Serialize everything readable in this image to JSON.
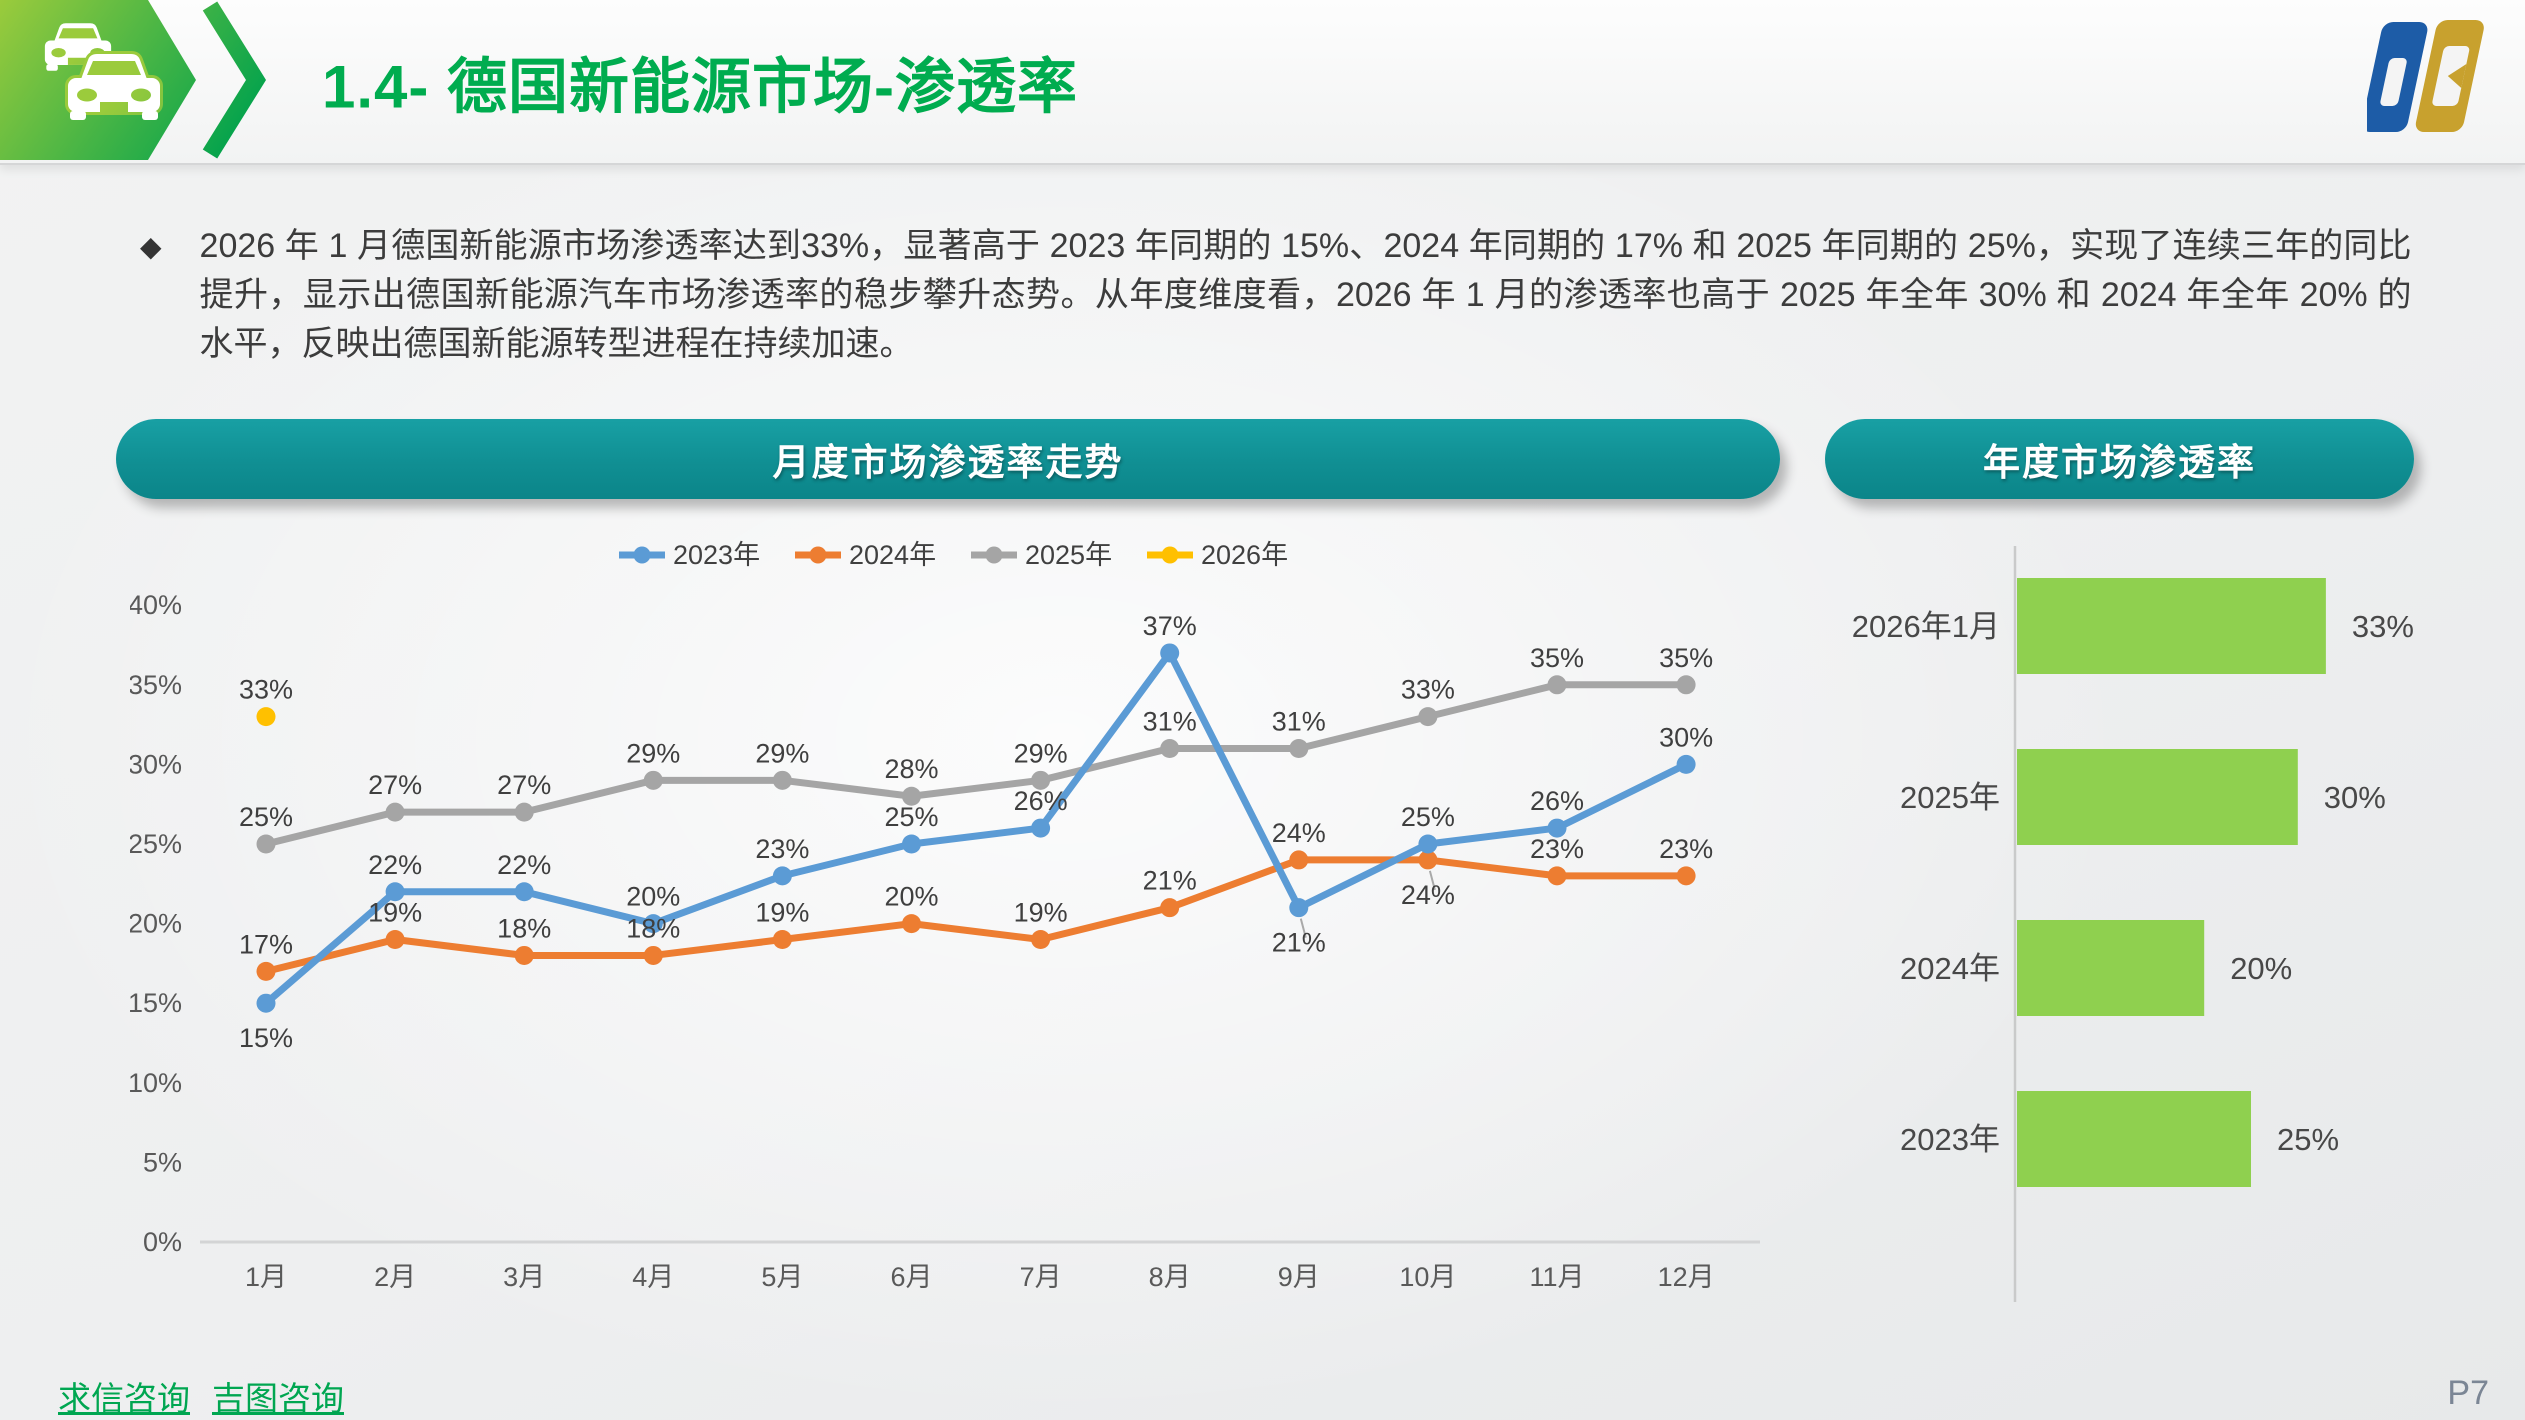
{
  "header": {
    "title": "1.4- 德国新能源市场-渗透率"
  },
  "summary": {
    "bullet_glyph": "◆",
    "text": "2026 年 1 月德国新能源市场渗透率达到33%，显著高于 2023 年同期的 15%、2024 年同期的 17% 和 2025 年同期的 25%，实现了连续三年的同比提升，显示出德国新能源汽车市场渗透率的稳步攀升态势。从年度维度看，2026 年 1 月的渗透率也高于 2025 年全年 30% 和 2024 年全年 20% 的水平，反映出德国新能源转型进程在持续加速。"
  },
  "chart_data": [
    {
      "type": "line",
      "title": "月度市场渗透率走势",
      "x": [
        "1月",
        "2月",
        "3月",
        "4月",
        "5月",
        "6月",
        "7月",
        "8月",
        "9月",
        "10月",
        "11月",
        "12月"
      ],
      "series": [
        {
          "name": "2023年",
          "color": "#5B9BD5",
          "values": [
            15,
            22,
            22,
            20,
            23,
            25,
            26,
            37,
            21,
            25,
            26,
            30
          ]
        },
        {
          "name": "2024年",
          "color": "#ED7D31",
          "values": [
            17,
            19,
            18,
            18,
            19,
            20,
            19,
            21,
            24,
            24,
            23,
            23
          ]
        },
        {
          "name": "2025年",
          "color": "#A5A5A5",
          "values": [
            25,
            27,
            27,
            29,
            29,
            28,
            29,
            31,
            31,
            33,
            35,
            35
          ]
        },
        {
          "name": "2026年",
          "color": "#FFC000",
          "values": [
            33,
            null,
            null,
            null,
            null,
            null,
            null,
            null,
            null,
            null,
            null,
            null
          ]
        }
      ],
      "unit": "%",
      "ylim": [
        0,
        40
      ],
      "yticks": [
        0,
        5,
        10,
        15,
        20,
        25,
        30,
        35,
        40
      ],
      "grid": false,
      "legend_position": "top",
      "label_below": [
        [
          0,
          0
        ],
        [
          0,
          8
        ],
        [
          1,
          9
        ]
      ],
      "label_leader": [
        [
          0,
          8
        ],
        [
          1,
          9
        ]
      ]
    },
    {
      "type": "bar",
      "title": "年度市场渗透率",
      "orientation": "horizontal",
      "categories": [
        "2026年1月",
        "2025年",
        "2024年",
        "2023年"
      ],
      "values": [
        33,
        30,
        20,
        25
      ],
      "unit": "%",
      "xlim": [
        0,
        40
      ],
      "bar_color": "#8FD04F",
      "axis_line": true
    }
  ],
  "footer": {
    "links": [
      "求信咨询",
      "吉图咨询"
    ],
    "page": "P7"
  },
  "colors": {
    "accent_green": "#00AC4F",
    "badge_gradient_start": "#9BCB3C",
    "badge_gradient_end": "#00A24D",
    "teal_pill": "#108F93",
    "bar_green": "#8FD04F",
    "line_2023": "#5B9BD5",
    "line_2024": "#ED7D31",
    "line_2025": "#A5A5A5",
    "line_2026": "#FFC000",
    "logo_blue": "#1D5CA7",
    "logo_gold": "#C8A12E"
  }
}
